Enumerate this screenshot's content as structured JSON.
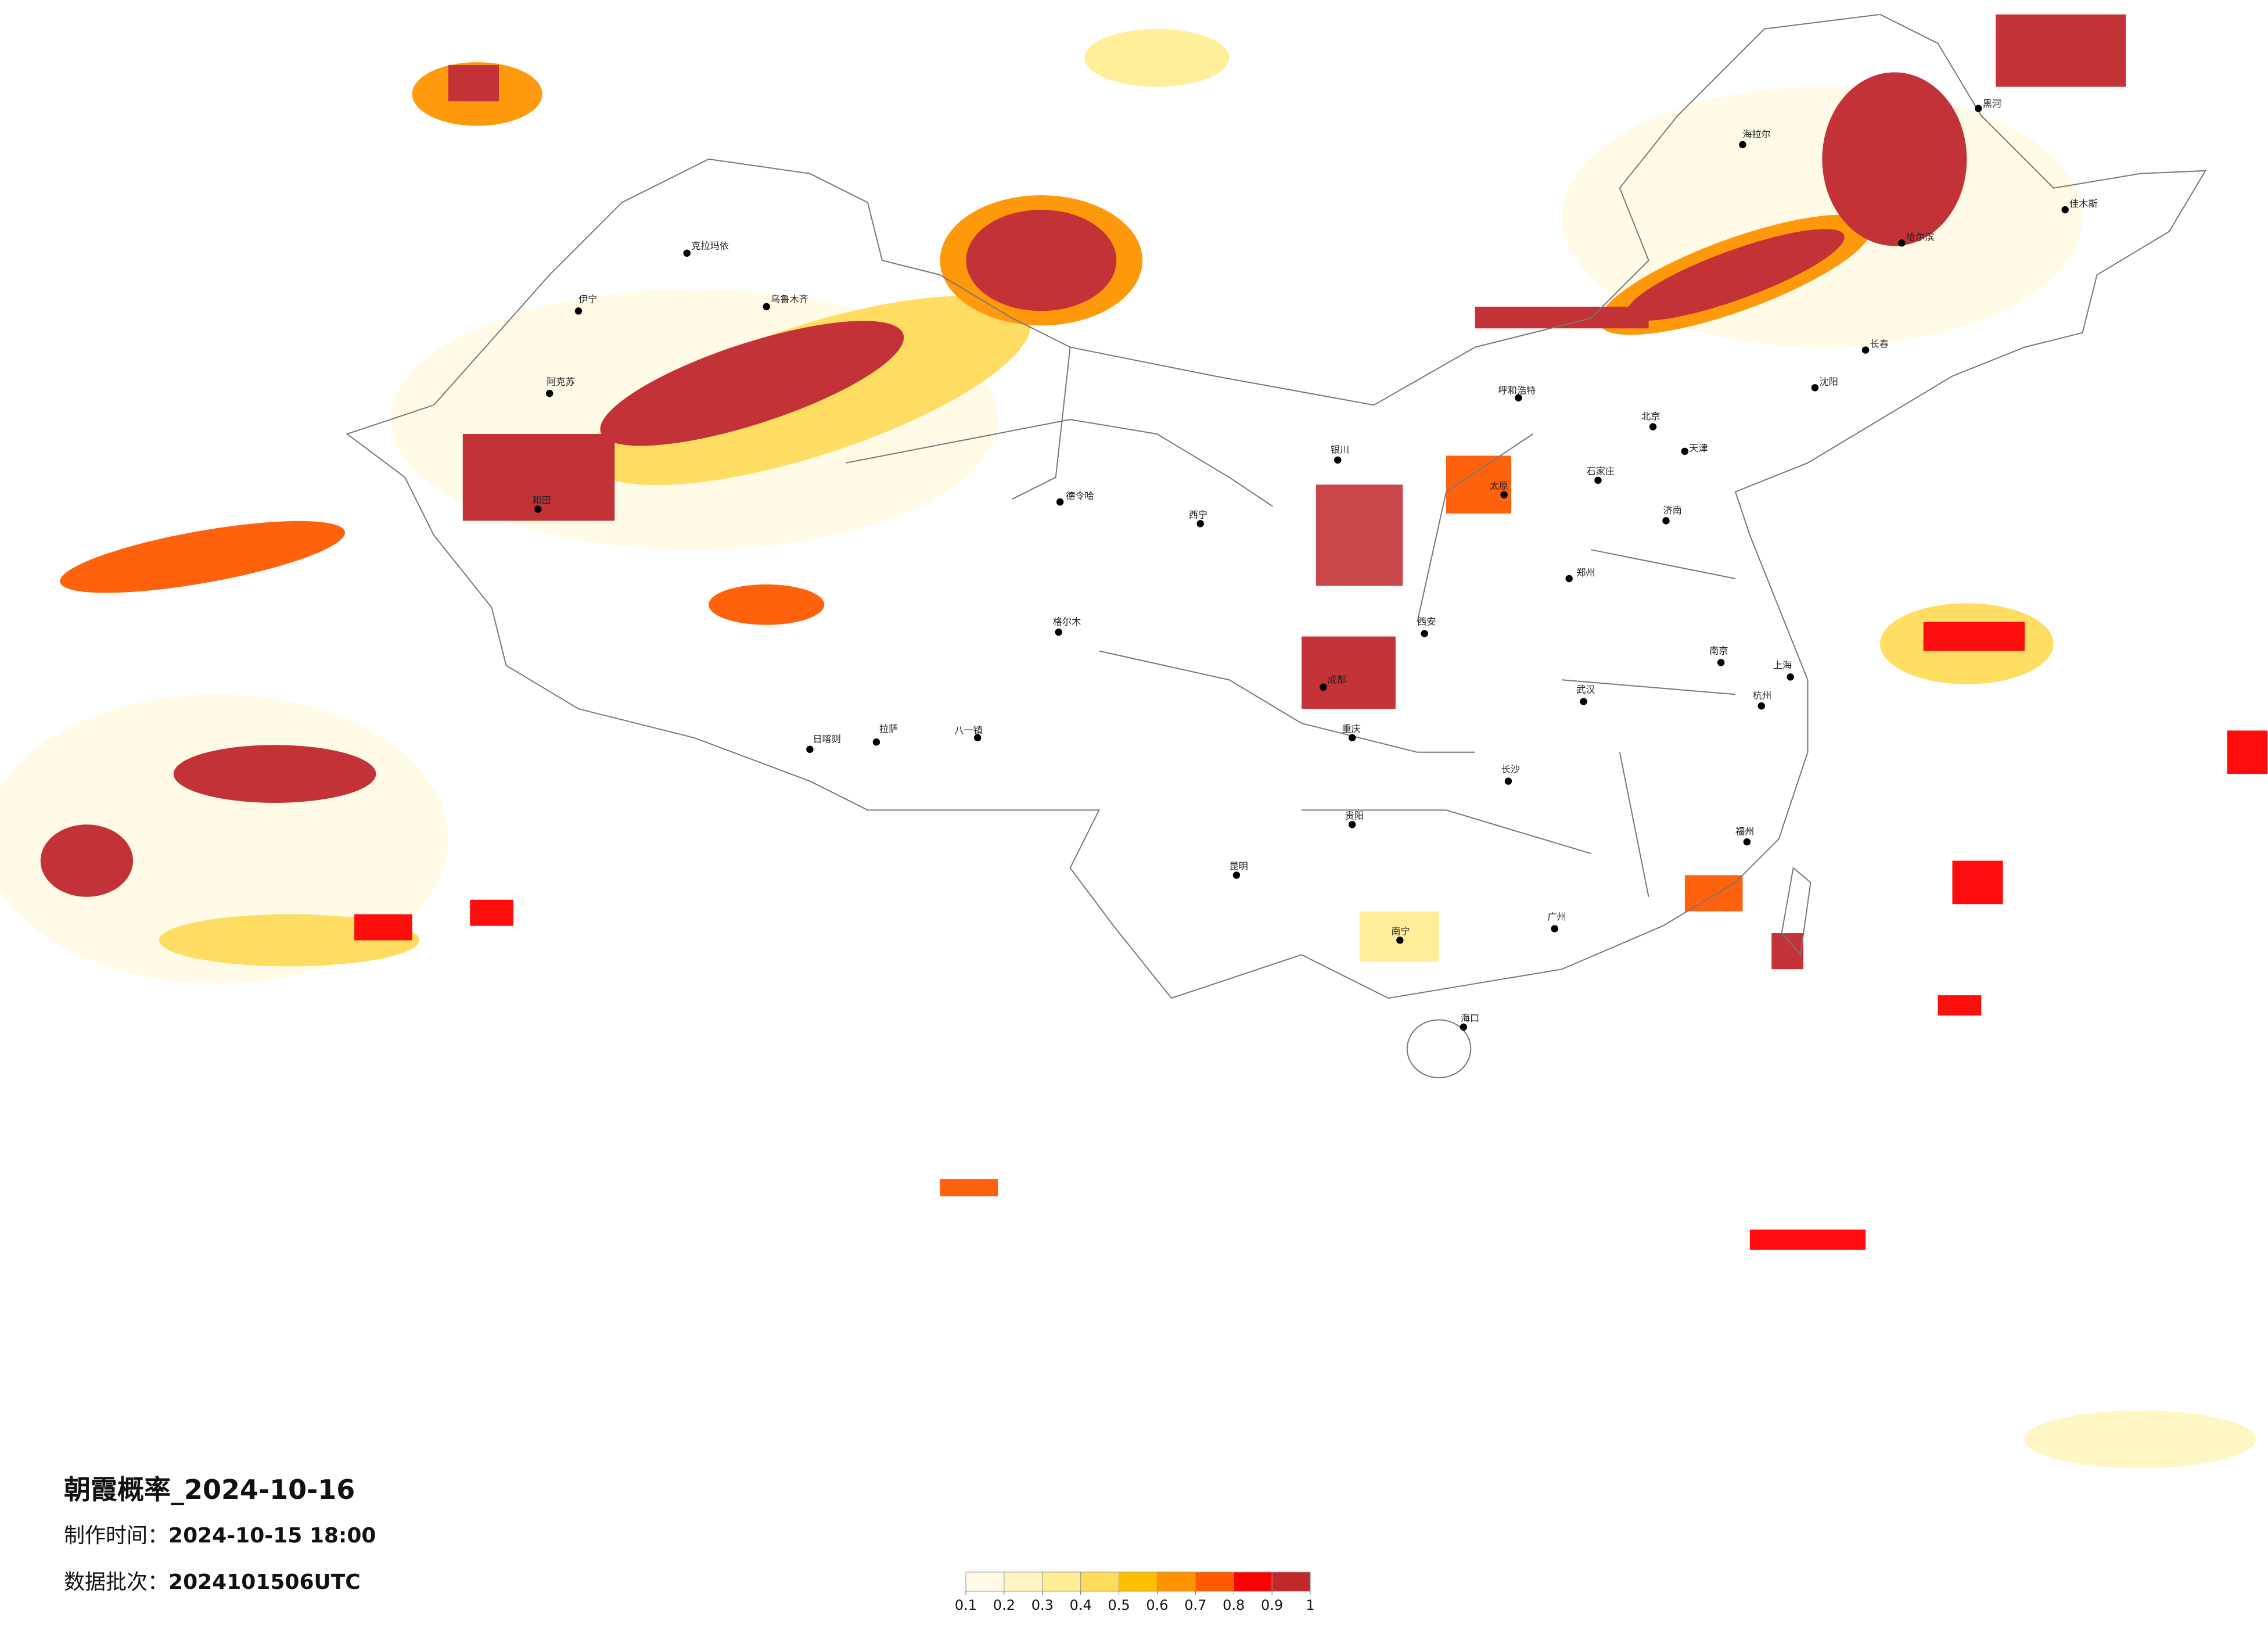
{
  "header": {
    "title": "朝霞概率_2024-10-16",
    "make_time_label": "制作时间：",
    "make_time": "2024-10-15 18:00",
    "batch_label": "数据批次：",
    "batch": "2024101506UTC"
  },
  "legend": {
    "colors": [
      "#fffbe6",
      "#fff5c2",
      "#ffee96",
      "#ffdc5a",
      "#ffbf00",
      "#ff9400",
      "#ff5a00",
      "#ff0000",
      "#c0282c"
    ],
    "ticks": [
      0.1,
      0.2,
      0.3,
      0.4,
      0.5,
      0.6,
      0.7,
      0.8,
      0.9,
      1
    ]
  },
  "cities": [
    "克拉玛依",
    "乌鲁木齐",
    "伊宁",
    "阿克苏",
    "和田",
    "德令哈",
    "格尔木",
    "拉萨",
    "日喀则",
    "八一镇",
    "成都",
    "重庆",
    "昆明",
    "贵阳",
    "南宁",
    "广州",
    "长沙",
    "武汉",
    "郑州",
    "西安",
    "北京",
    "天津",
    "石家庄",
    "济南",
    "沈阳",
    "长春",
    "哈尔滨",
    "上海",
    "南京",
    "杭州",
    "福州",
    "海口",
    "呼和浩特",
    "西宁",
    "银川",
    "太原",
    "海拉尔",
    "黑河",
    "佳木斯"
  ]
}
